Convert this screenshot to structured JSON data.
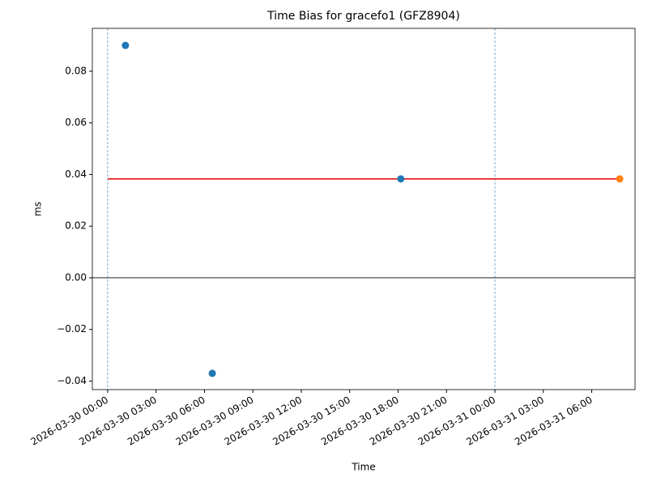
{
  "chart_data": {
    "type": "scatter",
    "title": "Time Bias for gracefo1 (GFZ8904)",
    "x_label": "Time",
    "y_label": "ms",
    "series": [
      {
        "color": "#1f77b4",
        "x": [
          "2026-03-30 01:06",
          "2026-03-30 06:29",
          "2026-03-30 18:10"
        ],
        "values": [
          0.09,
          -0.037,
          0.0383
        ]
      },
      {
        "color": "#ff7f0e",
        "x": [
          "2026-03-31 07:44"
        ],
        "values": [
          0.0383
        ]
      }
    ],
    "mean_line": {
      "value": 0.0383,
      "x": [
        "2026-03-30 00:00",
        "2026-03-31 07:44"
      ],
      "color": "#e00000"
    },
    "vlines": {
      "x": [
        "2026-03-30 00:00",
        "2026-03-31 00:00"
      ],
      "color": "#1f77b4"
    },
    "hline": {
      "value": 0,
      "color": "#000000"
    },
    "xlim": [
      "2026-03-29 23:03",
      "2026-03-31 08:41"
    ],
    "xticks": [
      "2026-03-30 00:00",
      "2026-03-30 03:00",
      "2026-03-30 06:00",
      "2026-03-30 09:00",
      "2026-03-30 12:00",
      "2026-03-30 15:00",
      "2026-03-30 18:00",
      "2026-03-30 21:00",
      "2026-03-31 00:00",
      "2026-03-31 03:00",
      "2026-03-31 06:00"
    ],
    "ylim": [
      -0.0433,
      0.0966
    ],
    "yticks": [
      {
        "value": -0.04,
        "label": "−0.04"
      },
      {
        "value": -0.02,
        "label": "−0.02"
      },
      {
        "value": 0,
        "label": "0.00"
      },
      {
        "value": 0.02,
        "label": "0.02"
      },
      {
        "value": 0.04,
        "label": "0.04"
      },
      {
        "value": 0.06,
        "label": "0.06"
      },
      {
        "value": 0.08,
        "label": "0.08"
      }
    ]
  }
}
